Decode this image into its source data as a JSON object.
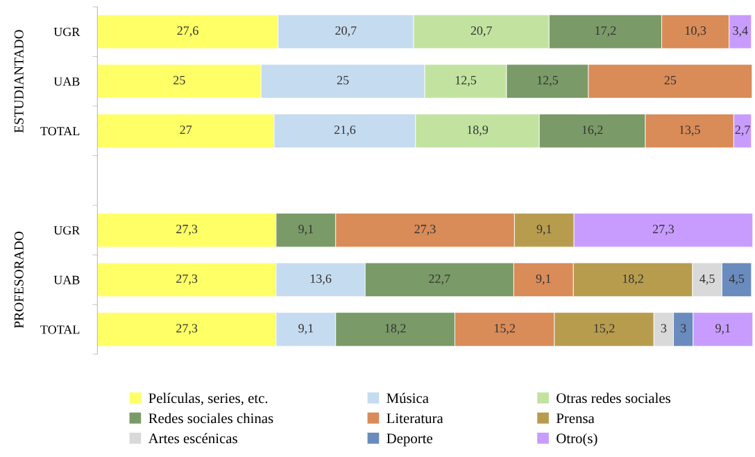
{
  "chart_data": {
    "type": "bar",
    "orientation": "horizontal",
    "stacked": true,
    "categories": [
      "UGR",
      "UAB",
      "TOTAL",
      null,
      "UGR",
      "UAB",
      "TOTAL"
    ],
    "xlim": [
      0,
      100.1
    ],
    "tick_labels": "y",
    "legend": "bottom",
    "grid": false,
    "annotations": [
      "ESTUDIANTADO",
      "PROFESORADO"
    ],
    "series": [
      {
        "name": "Películas, series, etc.",
        "color": "#ffff66",
        "values": [
          27.6,
          25,
          27,
          null,
          27.3,
          27.3,
          27.3
        ],
        "value_labels": [
          "27,6",
          "25",
          "27",
          null,
          "27,3",
          "27,3",
          "27,3"
        ]
      },
      {
        "name": "Música",
        "color": "#c5dbf0",
        "values": [
          20.7,
          25,
          21.6,
          null,
          null,
          13.6,
          9.1
        ],
        "value_labels": [
          "20,7",
          "25",
          "21,6",
          null,
          null,
          "13,6",
          "9,1"
        ]
      },
      {
        "name": "Otras redes sociales",
        "color": "#c2e3a0",
        "values": [
          20.7,
          12.5,
          18.9,
          null,
          null,
          null,
          null
        ],
        "value_labels": [
          "20,7",
          "12,5",
          "18,9",
          null,
          null,
          null,
          null
        ]
      },
      {
        "name": "Redes sociales chinas",
        "color": "#7a9a68",
        "values": [
          17.2,
          12.5,
          16.2,
          null,
          9.1,
          22.7,
          18.2
        ],
        "value_labels": [
          "17,2",
          "12,5",
          "16,2",
          null,
          "9,1",
          "22,7",
          "18,2"
        ]
      },
      {
        "name": "Literatura",
        "color": "#d98b58",
        "values": [
          10.3,
          25,
          13.5,
          null,
          27.3,
          9.1,
          15.2
        ],
        "value_labels": [
          "10,3",
          "25",
          "13,5",
          null,
          "27,3",
          "9,1",
          "15,2"
        ]
      },
      {
        "name": "Prensa",
        "color": "#b89c4e",
        "values": [
          null,
          null,
          null,
          null,
          9.1,
          18.2,
          15.2
        ],
        "value_labels": [
          null,
          null,
          null,
          null,
          "9,1",
          "18,2",
          "15,2"
        ]
      },
      {
        "name": "Artes escénicas",
        "color": "#d9d9d9",
        "values": [
          null,
          null,
          null,
          null,
          null,
          4.5,
          3
        ],
        "value_labels": [
          null,
          null,
          null,
          null,
          null,
          "4,5",
          "3"
        ]
      },
      {
        "name": "Deporte",
        "color": "#6a8bbd",
        "values": [
          null,
          null,
          null,
          null,
          null,
          4.5,
          3
        ],
        "value_labels": [
          null,
          null,
          null,
          null,
          null,
          "4,5",
          "3"
        ]
      },
      {
        "name": "Otro(s)",
        "color": "#c89cff",
        "values": [
          3.4,
          null,
          2.7,
          null,
          27.3,
          null,
          9.1
        ],
        "value_labels": [
          "3,4",
          null,
          "2,7",
          null,
          "27,3",
          null,
          "9,1"
        ]
      }
    ]
  }
}
